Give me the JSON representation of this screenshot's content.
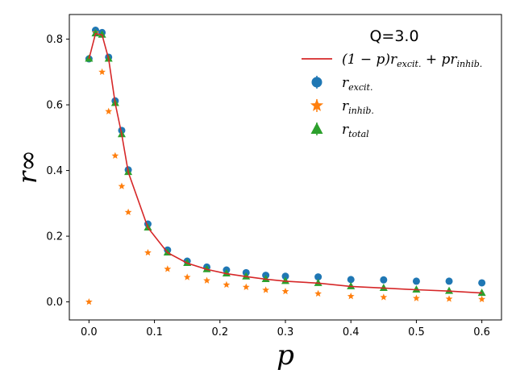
{
  "chart_data": {
    "type": "scatter",
    "title": "Q=3.0",
    "xlabel": "p",
    "ylabel": "r∞",
    "xlim": [
      -0.03,
      0.63
    ],
    "ylim": [
      -0.055,
      0.875
    ],
    "xticks": [
      0.0,
      0.1,
      0.2,
      0.3,
      0.4,
      0.5,
      0.6
    ],
    "xtick_labels": [
      "0.0",
      "0.1",
      "0.2",
      "0.3",
      "0.4",
      "0.5",
      "0.6"
    ],
    "yticks": [
      0.0,
      0.2,
      0.4,
      0.6,
      0.8
    ],
    "ytick_labels": [
      "0.0",
      "0.2",
      "0.4",
      "0.6",
      "0.8"
    ],
    "legend_position": "top-right",
    "x": [
      0.0,
      0.01,
      0.02,
      0.03,
      0.04,
      0.05,
      0.06,
      0.09,
      0.12,
      0.15,
      0.18,
      0.21,
      0.24,
      0.27,
      0.3,
      0.35,
      0.4,
      0.45,
      0.5,
      0.55,
      0.6
    ],
    "series": [
      {
        "name": "(1−p)r_excit. + p r_inhib.",
        "kind": "line",
        "color": "#d62728",
        "values": [
          0.74,
          0.817,
          0.813,
          0.74,
          0.605,
          0.51,
          0.395,
          0.226,
          0.15,
          0.118,
          0.099,
          0.086,
          0.077,
          0.069,
          0.063,
          0.057,
          0.047,
          0.042,
          0.037,
          0.033,
          0.027
        ]
      },
      {
        "name": "r_excit.",
        "kind": "circle",
        "color": "#1f77b4",
        "values": [
          0.74,
          0.827,
          0.82,
          0.745,
          0.612,
          0.522,
          0.402,
          0.237,
          0.158,
          0.124,
          0.106,
          0.097,
          0.089,
          0.081,
          0.078,
          0.076,
          0.068,
          0.067,
          0.063,
          0.063,
          0.058
        ]
      },
      {
        "name": "r_inhib.",
        "kind": "star",
        "color": "#ff7f0e",
        "values": [
          0.0,
          0.82,
          0.7,
          0.58,
          0.445,
          0.352,
          0.273,
          0.15,
          0.1,
          0.075,
          0.065,
          0.052,
          0.045,
          0.036,
          0.032,
          0.025,
          0.017,
          0.014,
          0.011,
          0.009,
          0.008
        ]
      },
      {
        "name": "r_total",
        "kind": "triangle",
        "color": "#2ca02c",
        "values": [
          0.74,
          0.817,
          0.813,
          0.74,
          0.605,
          0.51,
          0.395,
          0.226,
          0.15,
          0.118,
          0.099,
          0.086,
          0.077,
          0.069,
          0.063,
          0.057,
          0.047,
          0.042,
          0.037,
          0.033,
          0.027
        ]
      }
    ],
    "legend": {
      "title": "Q=3.0",
      "entries": [
        {
          "prefix": "(1 − p)r",
          "sub1": "excit.",
          "mid": " + pr",
          "sub2": "inhib."
        },
        {
          "prefix": "r",
          "sub1": "excit."
        },
        {
          "prefix": "r",
          "sub1": "inhib."
        },
        {
          "prefix": "r",
          "sub1": "total"
        }
      ]
    }
  }
}
